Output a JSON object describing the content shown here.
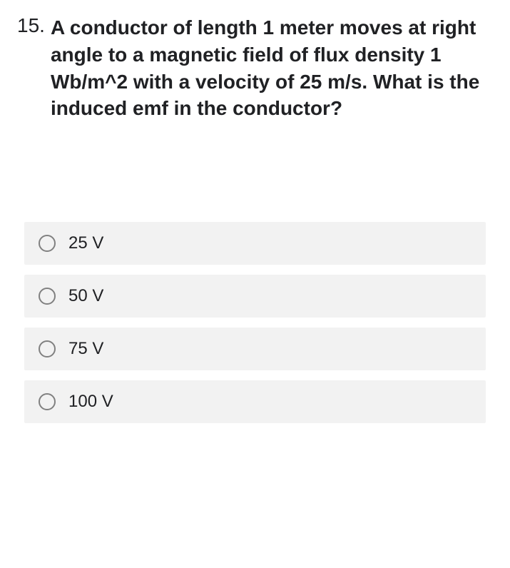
{
  "question": {
    "number": "15.",
    "text": "A conductor of length 1 meter moves at right angle to a magnetic field of flux density 1 Wb/m^2 with a velocity of 25 m/s. What is the induced emf in the conductor?"
  },
  "options": [
    {
      "label": "25 V"
    },
    {
      "label": "50 V"
    },
    {
      "label": "75 V"
    },
    {
      "label": "100 V"
    }
  ],
  "styles": {
    "question_number_fontsize": 28,
    "question_text_fontsize": 28,
    "question_text_fontweight": 700,
    "question_text_color": "#202124",
    "option_background": "#f2f2f2",
    "option_label_fontsize": 24,
    "option_label_color": "#202124",
    "radio_border_color": "#808080",
    "radio_size": 24,
    "body_background": "#ffffff",
    "option_gap": 14,
    "option_padding": "16px 20px"
  }
}
